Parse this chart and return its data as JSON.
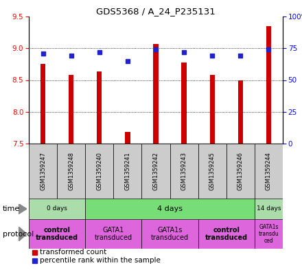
{
  "title": "GDS5368 / A_24_P235131",
  "samples": [
    "GSM1359247",
    "GSM1359248",
    "GSM1359240",
    "GSM1359241",
    "GSM1359242",
    "GSM1359243",
    "GSM1359245",
    "GSM1359246",
    "GSM1359244"
  ],
  "bar_values": [
    8.75,
    8.58,
    8.63,
    7.68,
    9.07,
    8.78,
    8.58,
    8.5,
    9.35
  ],
  "bar_bottom": 7.5,
  "percentile_values": [
    71,
    69,
    72,
    65,
    74,
    72,
    69,
    69,
    74
  ],
  "ylim": [
    7.5,
    9.5
  ],
  "y2lim": [
    0,
    100
  ],
  "yticks": [
    7.5,
    8.0,
    8.5,
    9.0,
    9.5
  ],
  "y2ticks": [
    0,
    25,
    50,
    75,
    100
  ],
  "bar_color": "#cc0000",
  "dot_color": "#2222cc",
  "time_groups": [
    {
      "label": "0 days",
      "start": 0,
      "end": 2,
      "color": "#aaddaa"
    },
    {
      "label": "4 days",
      "start": 2,
      "end": 8,
      "color": "#77dd77"
    },
    {
      "label": "14 days",
      "start": 8,
      "end": 9,
      "color": "#aaddaa"
    }
  ],
  "protocol_groups": [
    {
      "label": "control\ntransduced",
      "start": 0,
      "end": 2,
      "color": "#dd66dd",
      "bold": true
    },
    {
      "label": "GATA1\ntransduced",
      "start": 2,
      "end": 4,
      "color": "#dd66dd",
      "bold": false
    },
    {
      "label": "GATA1s\ntransduced",
      "start": 4,
      "end": 6,
      "color": "#dd66dd",
      "bold": false
    },
    {
      "label": "control\ntransduced",
      "start": 6,
      "end": 8,
      "color": "#dd66dd",
      "bold": true
    },
    {
      "label": "GATA1s\ntransdu\nced",
      "start": 8,
      "end": 9,
      "color": "#dd66dd",
      "bold": false
    }
  ],
  "legend_items": [
    {
      "color": "#cc0000",
      "label": "transformed count"
    },
    {
      "color": "#2222cc",
      "label": "percentile rank within the sample"
    }
  ]
}
